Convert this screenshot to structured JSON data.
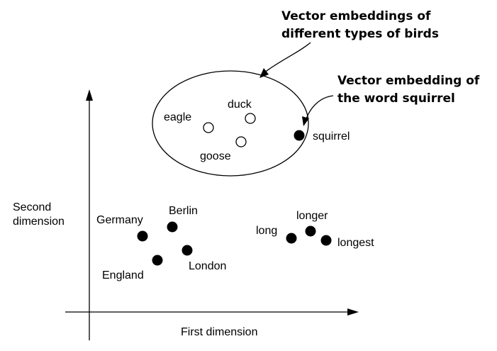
{
  "axes": {
    "x_label": "First dimension",
    "y_label_line1": "Second",
    "y_label_line2": "dimension"
  },
  "callouts": {
    "birds_line1": "Vector embeddings of",
    "birds_line2": "different types of birds",
    "squirrel_line1": "Vector embedding of",
    "squirrel_line2": "the word squirrel"
  },
  "points": {
    "eagle": "eagle",
    "duck": "duck",
    "goose": "goose",
    "squirrel": "squirrel",
    "germany": "Germany",
    "berlin": "Berlin",
    "england": "England",
    "london": "London",
    "long": "long",
    "longer": "longer",
    "longest": "longest"
  },
  "colors": {
    "ink": "#000000",
    "background": "#ffffff"
  }
}
